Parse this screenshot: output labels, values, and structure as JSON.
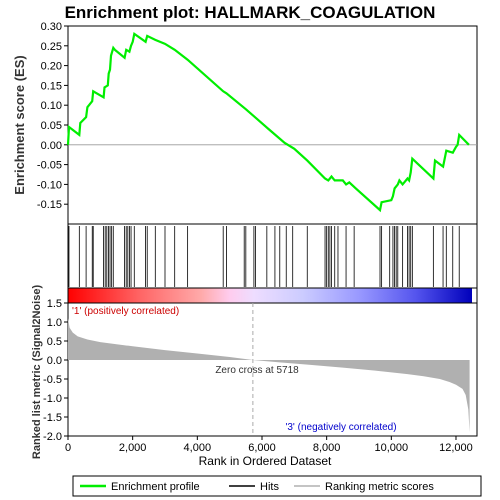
{
  "chart_data": {
    "type": "line",
    "title": "Enrichment plot: HALLMARK_COAGULATION",
    "es_panel": {
      "ylabel": "Enrichment score (ES)",
      "ylim": [
        -0.2,
        0.3
      ],
      "yticks": [
        "0.30",
        "0.25",
        "0.20",
        "0.15",
        "0.10",
        "0.05",
        "0.00",
        "-0.05",
        "-0.10",
        "-0.15"
      ],
      "ytick_values": [
        0.3,
        0.25,
        0.2,
        0.15,
        0.1,
        0.05,
        0.0,
        -0.05,
        -0.1,
        -0.15
      ],
      "series": [
        {
          "name": "Enrichment profile",
          "color": "#00ee00",
          "x": [
            0,
            30,
            350,
            380,
            560,
            600,
            750,
            780,
            1100,
            1130,
            1230,
            1260,
            1300,
            1330,
            1400,
            1450,
            1750,
            1800,
            1900,
            1950,
            2000,
            2050,
            2400,
            2450,
            2700,
            3000,
            3300,
            3700,
            4800,
            4900,
            5500,
            6200,
            6700,
            7000,
            7400,
            7950,
            8050,
            8150,
            8250,
            8500,
            8600,
            8700,
            8900,
            9650,
            9700,
            10000,
            10050,
            10100,
            10200,
            10250,
            10350,
            10500,
            10550,
            10600,
            10650,
            11300,
            11350,
            11600,
            11700,
            11900,
            12000,
            12050,
            12100,
            12400
          ],
          "y": [
            0.0,
            0.045,
            0.025,
            0.055,
            0.07,
            0.095,
            0.11,
            0.135,
            0.12,
            0.145,
            0.15,
            0.18,
            0.19,
            0.225,
            0.245,
            0.24,
            0.22,
            0.24,
            0.235,
            0.25,
            0.26,
            0.28,
            0.26,
            0.275,
            0.265,
            0.255,
            0.24,
            0.215,
            0.135,
            0.13,
            0.09,
            0.04,
            0.005,
            -0.01,
            -0.04,
            -0.085,
            -0.09,
            -0.08,
            -0.09,
            -0.09,
            -0.1,
            -0.095,
            -0.11,
            -0.165,
            -0.145,
            -0.14,
            -0.13,
            -0.11,
            -0.1,
            -0.09,
            -0.1,
            -0.085,
            -0.09,
            -0.07,
            -0.035,
            -0.085,
            -0.04,
            -0.055,
            -0.015,
            -0.02,
            -0.005,
            0.0,
            0.025,
            0.0
          ]
        }
      ]
    },
    "hits_panel": {
      "series_name": "Hits",
      "hit_ranks": [
        30,
        350,
        560,
        750,
        780,
        1100,
        1150,
        1200,
        1250,
        1300,
        1350,
        1400,
        1750,
        1800,
        1850,
        1900,
        1950,
        2050,
        2400,
        2450,
        2700,
        3000,
        3300,
        3700,
        4800,
        4900,
        5450,
        5500,
        5750,
        5800,
        6150,
        6400,
        6550,
        6750,
        6950,
        7400,
        7950,
        8000,
        8050,
        8100,
        8150,
        8250,
        8350,
        8600,
        8850,
        9650,
        9700,
        9950,
        10050,
        10100,
        10150,
        10200,
        10350,
        10500,
        10550,
        10600,
        10650,
        11300,
        11600,
        11700,
        11900,
        12100
      ]
    },
    "rank_panel": {
      "ylabel": "Ranked list metric (Signal2Noise)",
      "ylim": [
        -2.0,
        1.5
      ],
      "yticks": [
        "1.5",
        "1.0",
        "0.5",
        "0.0",
        "-0.5",
        "-1.0",
        "-1.5",
        "-2.0"
      ],
      "ytick_values": [
        1.5,
        1.0,
        0.5,
        0.0,
        -0.5,
        -1.0,
        -1.5,
        -2.0
      ],
      "x": [
        0,
        50,
        150,
        300,
        600,
        1000,
        2000,
        3000,
        4000,
        5000,
        5718,
        6500,
        7500,
        8500,
        9500,
        10500,
        11000,
        11500,
        11800,
        12000,
        12200,
        12300,
        12380,
        12420
      ],
      "y": [
        1.1,
        0.85,
        0.72,
        0.62,
        0.54,
        0.47,
        0.36,
        0.26,
        0.17,
        0.08,
        0.0,
        -0.06,
        -0.13,
        -0.2,
        -0.28,
        -0.37,
        -0.43,
        -0.5,
        -0.58,
        -0.65,
        -0.76,
        -0.92,
        -1.3,
        -1.9
      ],
      "color": "#b0b0b0",
      "series_name": "Ranking metric scores"
    },
    "xaxis": {
      "label": "Rank in Ordered Dataset",
      "xlim": [
        0,
        12650
      ],
      "ticks": [
        "0",
        "2,000",
        "4,000",
        "6,000",
        "8,000",
        "10,000",
        "12,000"
      ],
      "tick_values": [
        0,
        2000,
        4000,
        6000,
        8000,
        10000,
        12000
      ]
    },
    "annotations": {
      "positive": "'1' (positively correlated)",
      "negative": "'3' (negatively correlated)",
      "zero_cross": "Zero cross at 5718",
      "zero_cross_rank": 5718,
      "max_rank": 12420
    },
    "legend": {
      "placement": "bottom",
      "entries": [
        {
          "label": "Enrichment profile",
          "color": "#00ee00"
        },
        {
          "label": "Hits",
          "color": "#000000"
        },
        {
          "label": "Ranking metric scores",
          "color": "#b0b0b0"
        }
      ]
    }
  }
}
